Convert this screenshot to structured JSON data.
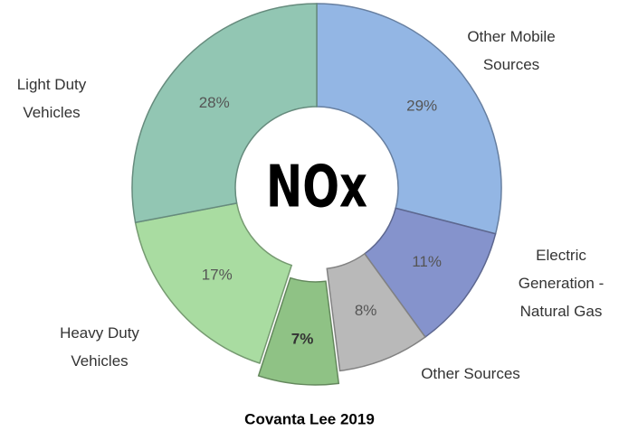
{
  "chart_data": {
    "type": "donut",
    "title": "Covanta Lee 2019",
    "center_label": "NOx",
    "categories": [
      "Other Mobile Sources",
      "Electric Generation - Natural Gas",
      "Other Sources",
      null,
      "Heavy Duty Vehicles",
      "Light Duty Vehicles"
    ],
    "values": [
      29,
      11,
      8,
      7,
      17,
      28
    ],
    "value_labels": [
      "29%",
      "11%",
      "8%",
      "7%",
      "17%",
      "28%"
    ],
    "colors": [
      "#93b6e4",
      "#8593cc",
      "#b9b9b9",
      "#8fc285",
      "#a9dca1",
      "#92c6b3"
    ],
    "exploded": [
      3
    ]
  }
}
